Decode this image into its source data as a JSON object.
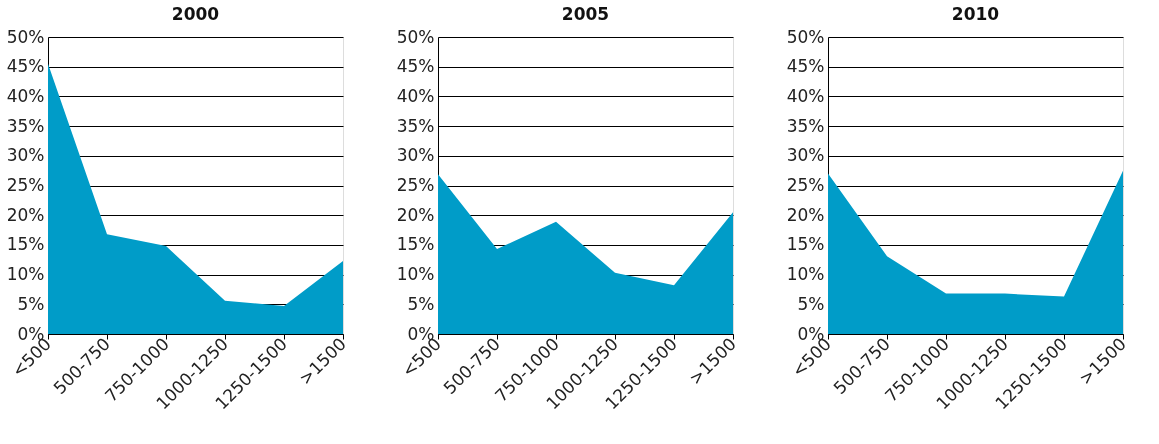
{
  "chart_data": [
    {
      "type": "area",
      "title": "2000",
      "categories": [
        "<500",
        "500-750",
        "750-1000",
        "1000-1250",
        "1250-1500",
        ">1500"
      ],
      "values": [
        45.5,
        16.8,
        14.8,
        5.6,
        4.7,
        12.3
      ],
      "color": "#009cc8",
      "ylim": [
        0,
        50
      ],
      "yticks": [
        {
          "value": 0,
          "label": "0%"
        },
        {
          "value": 5,
          "label": "5%"
        },
        {
          "value": 10,
          "label": "10%"
        },
        {
          "value": 15,
          "label": "15%"
        },
        {
          "value": 20,
          "label": "20%"
        },
        {
          "value": 25,
          "label": "25%"
        },
        {
          "value": 30,
          "label": "30%"
        },
        {
          "value": 35,
          "label": "35%"
        },
        {
          "value": 40,
          "label": "40%"
        },
        {
          "value": 45,
          "label": "45%"
        },
        {
          "value": 50,
          "label": "50%"
        }
      ],
      "grid": "y"
    },
    {
      "type": "area",
      "title": "2005",
      "categories": [
        "<500",
        "500-750",
        "750-1000",
        "1000-1250",
        "1250-1500",
        ">1500"
      ],
      "values": [
        26.9,
        14.3,
        18.9,
        10.3,
        8.2,
        20.5
      ],
      "color": "#009cc8",
      "ylim": [
        0,
        50
      ],
      "yticks": [
        {
          "value": 0,
          "label": "0%"
        },
        {
          "value": 5,
          "label": "5%"
        },
        {
          "value": 10,
          "label": "10%"
        },
        {
          "value": 15,
          "label": "15%"
        },
        {
          "value": 20,
          "label": "20%"
        },
        {
          "value": 25,
          "label": "25%"
        },
        {
          "value": 30,
          "label": "30%"
        },
        {
          "value": 35,
          "label": "35%"
        },
        {
          "value": 40,
          "label": "40%"
        },
        {
          "value": 45,
          "label": "45%"
        },
        {
          "value": 50,
          "label": "50%"
        }
      ],
      "grid": "y"
    },
    {
      "type": "area",
      "title": "2010",
      "categories": [
        "<500",
        "500-750",
        "750-1000",
        "1000-1250",
        "1250-1500",
        ">1500"
      ],
      "values": [
        27.0,
        13.1,
        6.8,
        6.8,
        6.3,
        27.5
      ],
      "color": "#009cc8",
      "ylim": [
        0,
        50
      ],
      "yticks": [
        {
          "value": 0,
          "label": "0%"
        },
        {
          "value": 5,
          "label": "5%"
        },
        {
          "value": 10,
          "label": "10%"
        },
        {
          "value": 15,
          "label": "15%"
        },
        {
          "value": 20,
          "label": "20%"
        },
        {
          "value": 25,
          "label": "25%"
        },
        {
          "value": 30,
          "label": "30%"
        },
        {
          "value": 35,
          "label": "35%"
        },
        {
          "value": 40,
          "label": "40%"
        },
        {
          "value": 45,
          "label": "45%"
        },
        {
          "value": 50,
          "label": "50%"
        }
      ],
      "grid": "y"
    }
  ]
}
